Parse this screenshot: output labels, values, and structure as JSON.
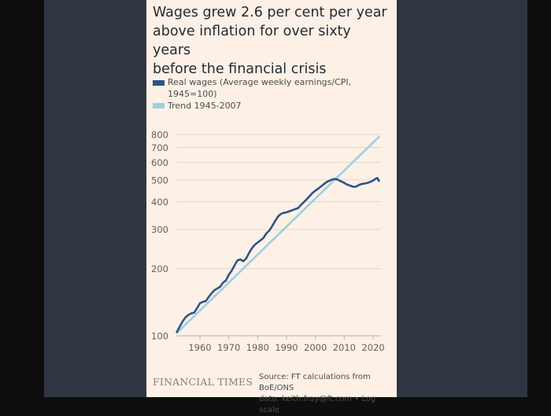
{
  "colors": {
    "background": "#0e0e0e",
    "panel": "#2f3641",
    "card": "#fdf0e6",
    "real_wages": "#2e5486",
    "trend": "#9dcfe2",
    "gridline": "#e3d6cb",
    "axis_text": "#66605b"
  },
  "title": [
    "Wages grew 2.6 per cent per year",
    "above inflation for over sixty years",
    "before the financial crisis"
  ],
  "legend": {
    "items": [
      {
        "label_line1": "Real wages (Average weekly earnings/CPI,",
        "label_line2": "1945=100)",
        "color": "#2e5486"
      },
      {
        "label_line1": "Trend 1945-2007",
        "label_line2": "",
        "color": "#9dcfe2"
      }
    ]
  },
  "footer": {
    "logo": "FINANCIAL TIMES",
    "source_line1": "Source: FT calculations from BoE/ONS",
    "source_line2": "data. keith.fray@ft.com • Log scale"
  },
  "chart_data": {
    "type": "line",
    "title": "Wages grew 2.6 per cent per year above inflation for over sixty years before the financial crisis",
    "xlabel": "",
    "ylabel": "",
    "yscale": "log",
    "xlim": [
      1951,
      2023
    ],
    "ylim": [
      100,
      800
    ],
    "grid": true,
    "legend_position": "top-left",
    "yticks": [
      100,
      200,
      300,
      400,
      500,
      600,
      700,
      800
    ],
    "ytick_labels": [
      "100",
      "200",
      "300",
      "400",
      "500",
      "600",
      "700",
      "800"
    ],
    "xticks": [
      1960,
      1970,
      1980,
      1990,
      2000,
      2010,
      2020
    ],
    "xtick_labels": [
      "1960",
      "1970",
      "1980",
      "1990",
      "2000",
      "2010",
      "2020"
    ],
    "series": [
      {
        "name": "Real wages (Average weekly earnings/CPI, 1945=100)",
        "x": [
          1952,
          1953,
          1954,
          1955,
          1956,
          1957,
          1958,
          1959,
          1960,
          1961,
          1962,
          1963,
          1964,
          1965,
          1966,
          1967,
          1968,
          1969,
          1970,
          1971,
          1972,
          1973,
          1974,
          1975,
          1976,
          1977,
          1978,
          1979,
          1980,
          1981,
          1982,
          1983,
          1984,
          1985,
          1986,
          1987,
          1988,
          1989,
          1990,
          1991,
          1992,
          1993,
          1994,
          1995,
          1996,
          1997,
          1998,
          1999,
          2000,
          2001,
          2002,
          2003,
          2004,
          2005,
          2006,
          2007,
          2008,
          2009,
          2010,
          2011,
          2012,
          2013,
          2014,
          2015,
          2016,
          2017,
          2018,
          2019,
          2020,
          2021,
          2021.5,
          2022
        ],
        "values": [
          104,
          110,
          116,
          121,
          124,
          126,
          127,
          133,
          140,
          142,
          143,
          149,
          155,
          160,
          163,
          166,
          173,
          177,
          188,
          196,
          207,
          218,
          220,
          216,
          222,
          235,
          247,
          256,
          262,
          268,
          275,
          288,
          296,
          310,
          326,
          342,
          352,
          356,
          358,
          362,
          366,
          370,
          374,
          386,
          398,
          410,
          423,
          437,
          448,
          457,
          468,
          480,
          490,
          497,
          503,
          505,
          500,
          492,
          485,
          477,
          472,
          466,
          466,
          474,
          480,
          482,
          485,
          490,
          497,
          508,
          510,
          495
        ]
      },
      {
        "name": "Trend 1945-2007",
        "x": [
          1952,
          2022
        ],
        "values": [
          103,
          780
        ]
      }
    ]
  }
}
